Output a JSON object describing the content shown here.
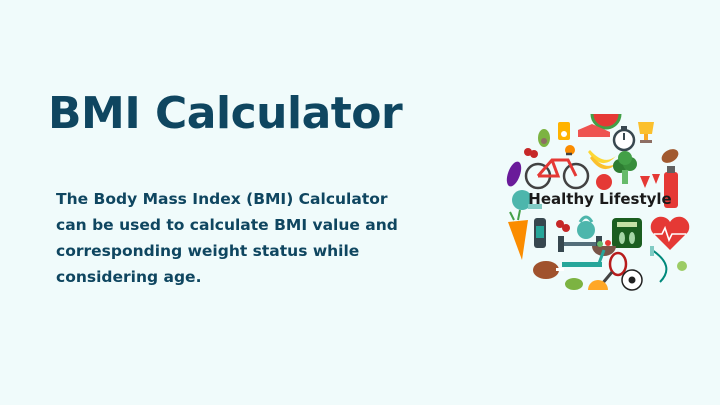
{
  "title": "BMI Calculator",
  "description": "The Body Mass Index (BMI) Calculator can be used to calculate BMI value and corresponding weight status while considering age.",
  "illustration": {
    "label": "Healthy Lifestyle",
    "icons": [
      "watermelon-icon",
      "sneaker-icon",
      "stopwatch-icon",
      "trophy-icon",
      "bicycle-icon",
      "banana-icon",
      "broccoli-icon",
      "bottle-icon",
      "heart-icon",
      "scale-icon",
      "kettlebell-icon",
      "skipping-rope-icon",
      "soccer-ball-icon",
      "carrot-icon",
      "dumbbell-icon",
      "tennis-racket-icon"
    ]
  },
  "colors": {
    "background": "#f0fbfb",
    "text": "#0f4660",
    "label": "#1a1a1a"
  }
}
